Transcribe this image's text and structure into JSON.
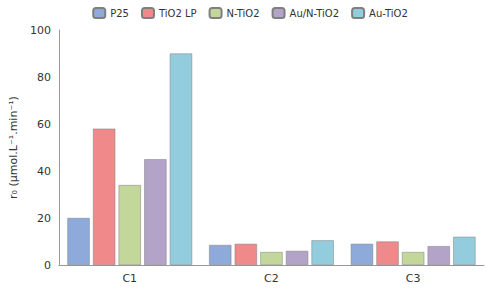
{
  "chart_data": {
    "type": "bar",
    "y_label": "r₀ (µmol.L⁻¹.min⁻¹)",
    "categories": [
      "C1",
      "C2",
      "C3"
    ],
    "series": [
      {
        "name": "P25",
        "color": "#8eaadb",
        "values": [
          20,
          8.5,
          9
        ]
      },
      {
        "name": "TiO2 LP",
        "color": "#f08a8a",
        "values": [
          58,
          9,
          10
        ]
      },
      {
        "name": "N-TiO2",
        "color": "#c4d79b",
        "values": [
          34,
          5.5,
          5.5
        ]
      },
      {
        "name": "Au/N-TiO2",
        "color": "#b4a3c8",
        "values": [
          45,
          6,
          8
        ]
      },
      {
        "name": "Au-TiO2",
        "color": "#93cddd",
        "values": [
          90,
          10.5,
          12
        ]
      }
    ],
    "ylim": [
      0,
      100
    ],
    "yticks": [
      0,
      20,
      40,
      60,
      80,
      100
    ],
    "grid": false,
    "legend": "top"
  }
}
